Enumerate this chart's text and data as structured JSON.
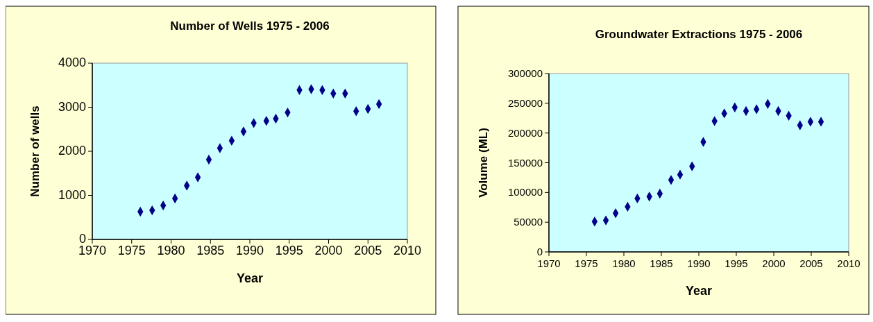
{
  "chart_data": [
    {
      "type": "scatter",
      "title": "Number of Wells 1975 - 2006",
      "xlabel": "Year",
      "ylabel": "Number of wells",
      "xlim": [
        1970,
        2010
      ],
      "xticks": [
        1970,
        1975,
        1980,
        1985,
        1990,
        1995,
        2000,
        2005,
        2010
      ],
      "ylim": [
        0,
        4000
      ],
      "yticks": [
        0,
        1000,
        2000,
        3000,
        4000
      ],
      "grid": false,
      "marker": "diamond",
      "series": [
        {
          "color": "#00008b",
          "x": [
            1976.1,
            1977.6,
            1979.0,
            1980.5,
            1982.0,
            1983.4,
            1984.8,
            1986.2,
            1987.7,
            1989.2,
            1990.5,
            1992.1,
            1993.3,
            1994.8,
            1996.3,
            1997.8,
            1999.2,
            2000.6,
            2002.1,
            2003.5,
            2005.0,
            2006.4
          ],
          "values": [
            630,
            660,
            770,
            930,
            1220,
            1410,
            1810,
            2070,
            2240,
            2450,
            2640,
            2690,
            2740,
            2880,
            3390,
            3410,
            3390,
            3310,
            3310,
            2910,
            2960,
            3070
          ]
        }
      ]
    },
    {
      "type": "scatter",
      "title": "Groundwater Extractions 1975 - 2006",
      "xlabel": "Year",
      "ylabel": "Volume (ML)",
      "xlim": [
        1970,
        2010
      ],
      "xticks": [
        1970,
        1975,
        1980,
        1985,
        1990,
        1995,
        2000,
        2005,
        2010
      ],
      "ylim": [
        0,
        300000
      ],
      "yticks": [
        0,
        50000,
        100000,
        150000,
        200000,
        250000,
        300000
      ],
      "grid": false,
      "marker": "diamond",
      "series": [
        {
          "color": "#00008b",
          "x": [
            1976.1,
            1977.6,
            1978.9,
            1980.5,
            1981.8,
            1983.4,
            1984.8,
            1986.3,
            1987.5,
            1989.1,
            1990.6,
            1992.1,
            1993.4,
            1994.8,
            1996.3,
            1997.7,
            1999.2,
            2000.6,
            2002.0,
            2003.5,
            2004.9,
            2006.3
          ],
          "values": [
            51000,
            53000,
            65000,
            76000,
            90000,
            93000,
            98000,
            121000,
            130000,
            144000,
            185000,
            220000,
            233000,
            243000,
            237000,
            240000,
            249000,
            237000,
            229000,
            213000,
            219000,
            219000
          ]
        }
      ]
    }
  ]
}
